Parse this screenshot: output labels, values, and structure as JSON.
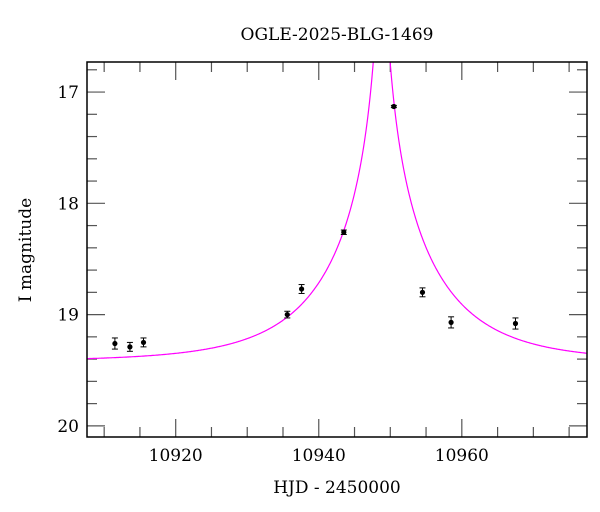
{
  "chart_data": {
    "type": "scatter",
    "title": "OGLE-2025-BLG-1469",
    "xlabel": "HJD - 2450000",
    "ylabel": "I magnitude",
    "xlim": [
      10907.6,
      10977.5
    ],
    "ylim": [
      20.1,
      16.73
    ],
    "y_inverted": true,
    "grid": false,
    "legend": null,
    "x_ticks": {
      "major": [
        10920,
        10940,
        10960
      ],
      "minor_step": 5
    },
    "y_ticks": {
      "major": [
        17,
        18,
        19,
        20
      ],
      "minor_step": 0.2
    },
    "colors": {
      "model": "#ff00ff",
      "points": "#000000",
      "frame": "#000000"
    },
    "series": [
      {
        "name": "observations",
        "kind": "points_with_errorbars",
        "x": [
          10911.5,
          10913.6,
          10915.5,
          10935.6,
          10937.6,
          10943.5,
          10950.5,
          10954.5,
          10958.5,
          10967.5
        ],
        "y": [
          19.26,
          19.29,
          19.25,
          19.0,
          18.77,
          18.26,
          17.13,
          18.8,
          19.07,
          19.08
        ],
        "yerr": [
          0.05,
          0.04,
          0.04,
          0.03,
          0.04,
          0.02,
          0.01,
          0.04,
          0.05,
          0.05
        ]
      },
      {
        "name": "model",
        "kind": "line",
        "model": "paczynski",
        "params": {
          "t0": 10948.8,
          "tE": 15.0,
          "u0": 0.03,
          "I_base": 19.42
        }
      }
    ]
  }
}
